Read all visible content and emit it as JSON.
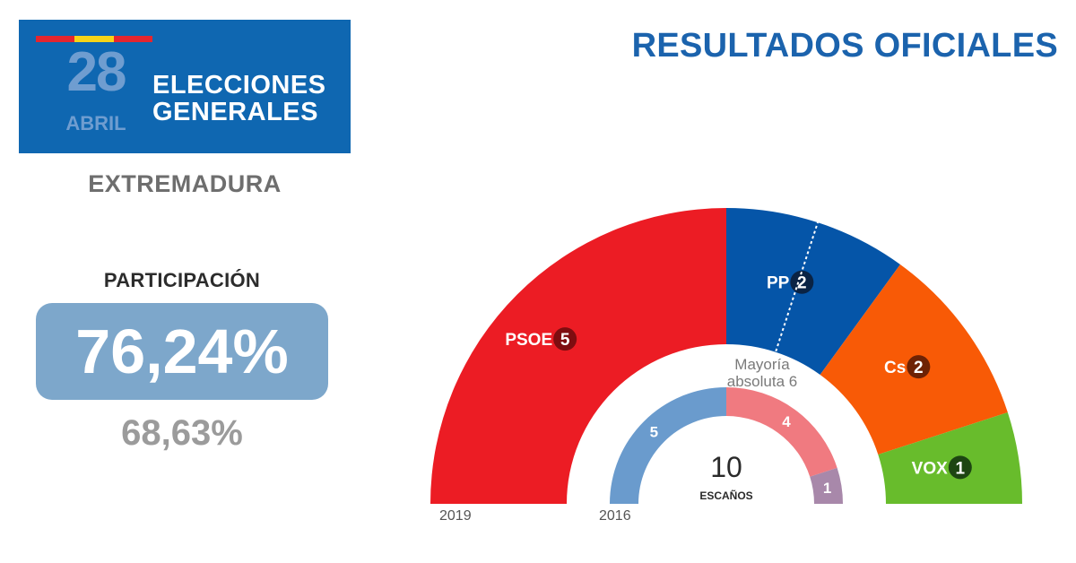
{
  "header": {
    "day": "28",
    "month": "ABRIL",
    "title_line1": "ELECCIONES",
    "title_line2": "GENERALES",
    "headline": "RESULTADOS OFICIALES",
    "flag_colors": [
      "#e4262f",
      "#f7d417",
      "#e4262f"
    ],
    "brand_color": "#0f67b1"
  },
  "region": "EXTREMADURA",
  "participation": {
    "label": "PARTICIPACIÓN",
    "current": "76,24%",
    "previous": "68,63%"
  },
  "chart_data": {
    "type": "hemicycle",
    "total_seats": 10,
    "total_label": "ESCAÑOS",
    "majority_label_line1": "Mayoría",
    "majority_label_line2": "absoluta 6",
    "majority_seats": 6,
    "rings": [
      {
        "year": "2019",
        "seats": [
          {
            "party": "PSOE",
            "value": 5,
            "color": "#ec1c24",
            "badge_color": "#7e0d10"
          },
          {
            "party": "PP",
            "value": 2,
            "color": "#0555a8",
            "badge_color": "#0a2344"
          },
          {
            "party": "Cs",
            "value": 2,
            "color": "#f85a06",
            "badge_color": "#6e2204"
          },
          {
            "party": "VOX",
            "value": 1,
            "color": "#68bc2c",
            "badge_color": "#1d4512"
          }
        ]
      },
      {
        "year": "2016",
        "seats": [
          {
            "value": 5,
            "color": "#6a9bcd"
          },
          {
            "value": 4,
            "color": "#f07a80"
          },
          {
            "value": 1,
            "color": "#a888aa"
          }
        ]
      }
    ]
  }
}
